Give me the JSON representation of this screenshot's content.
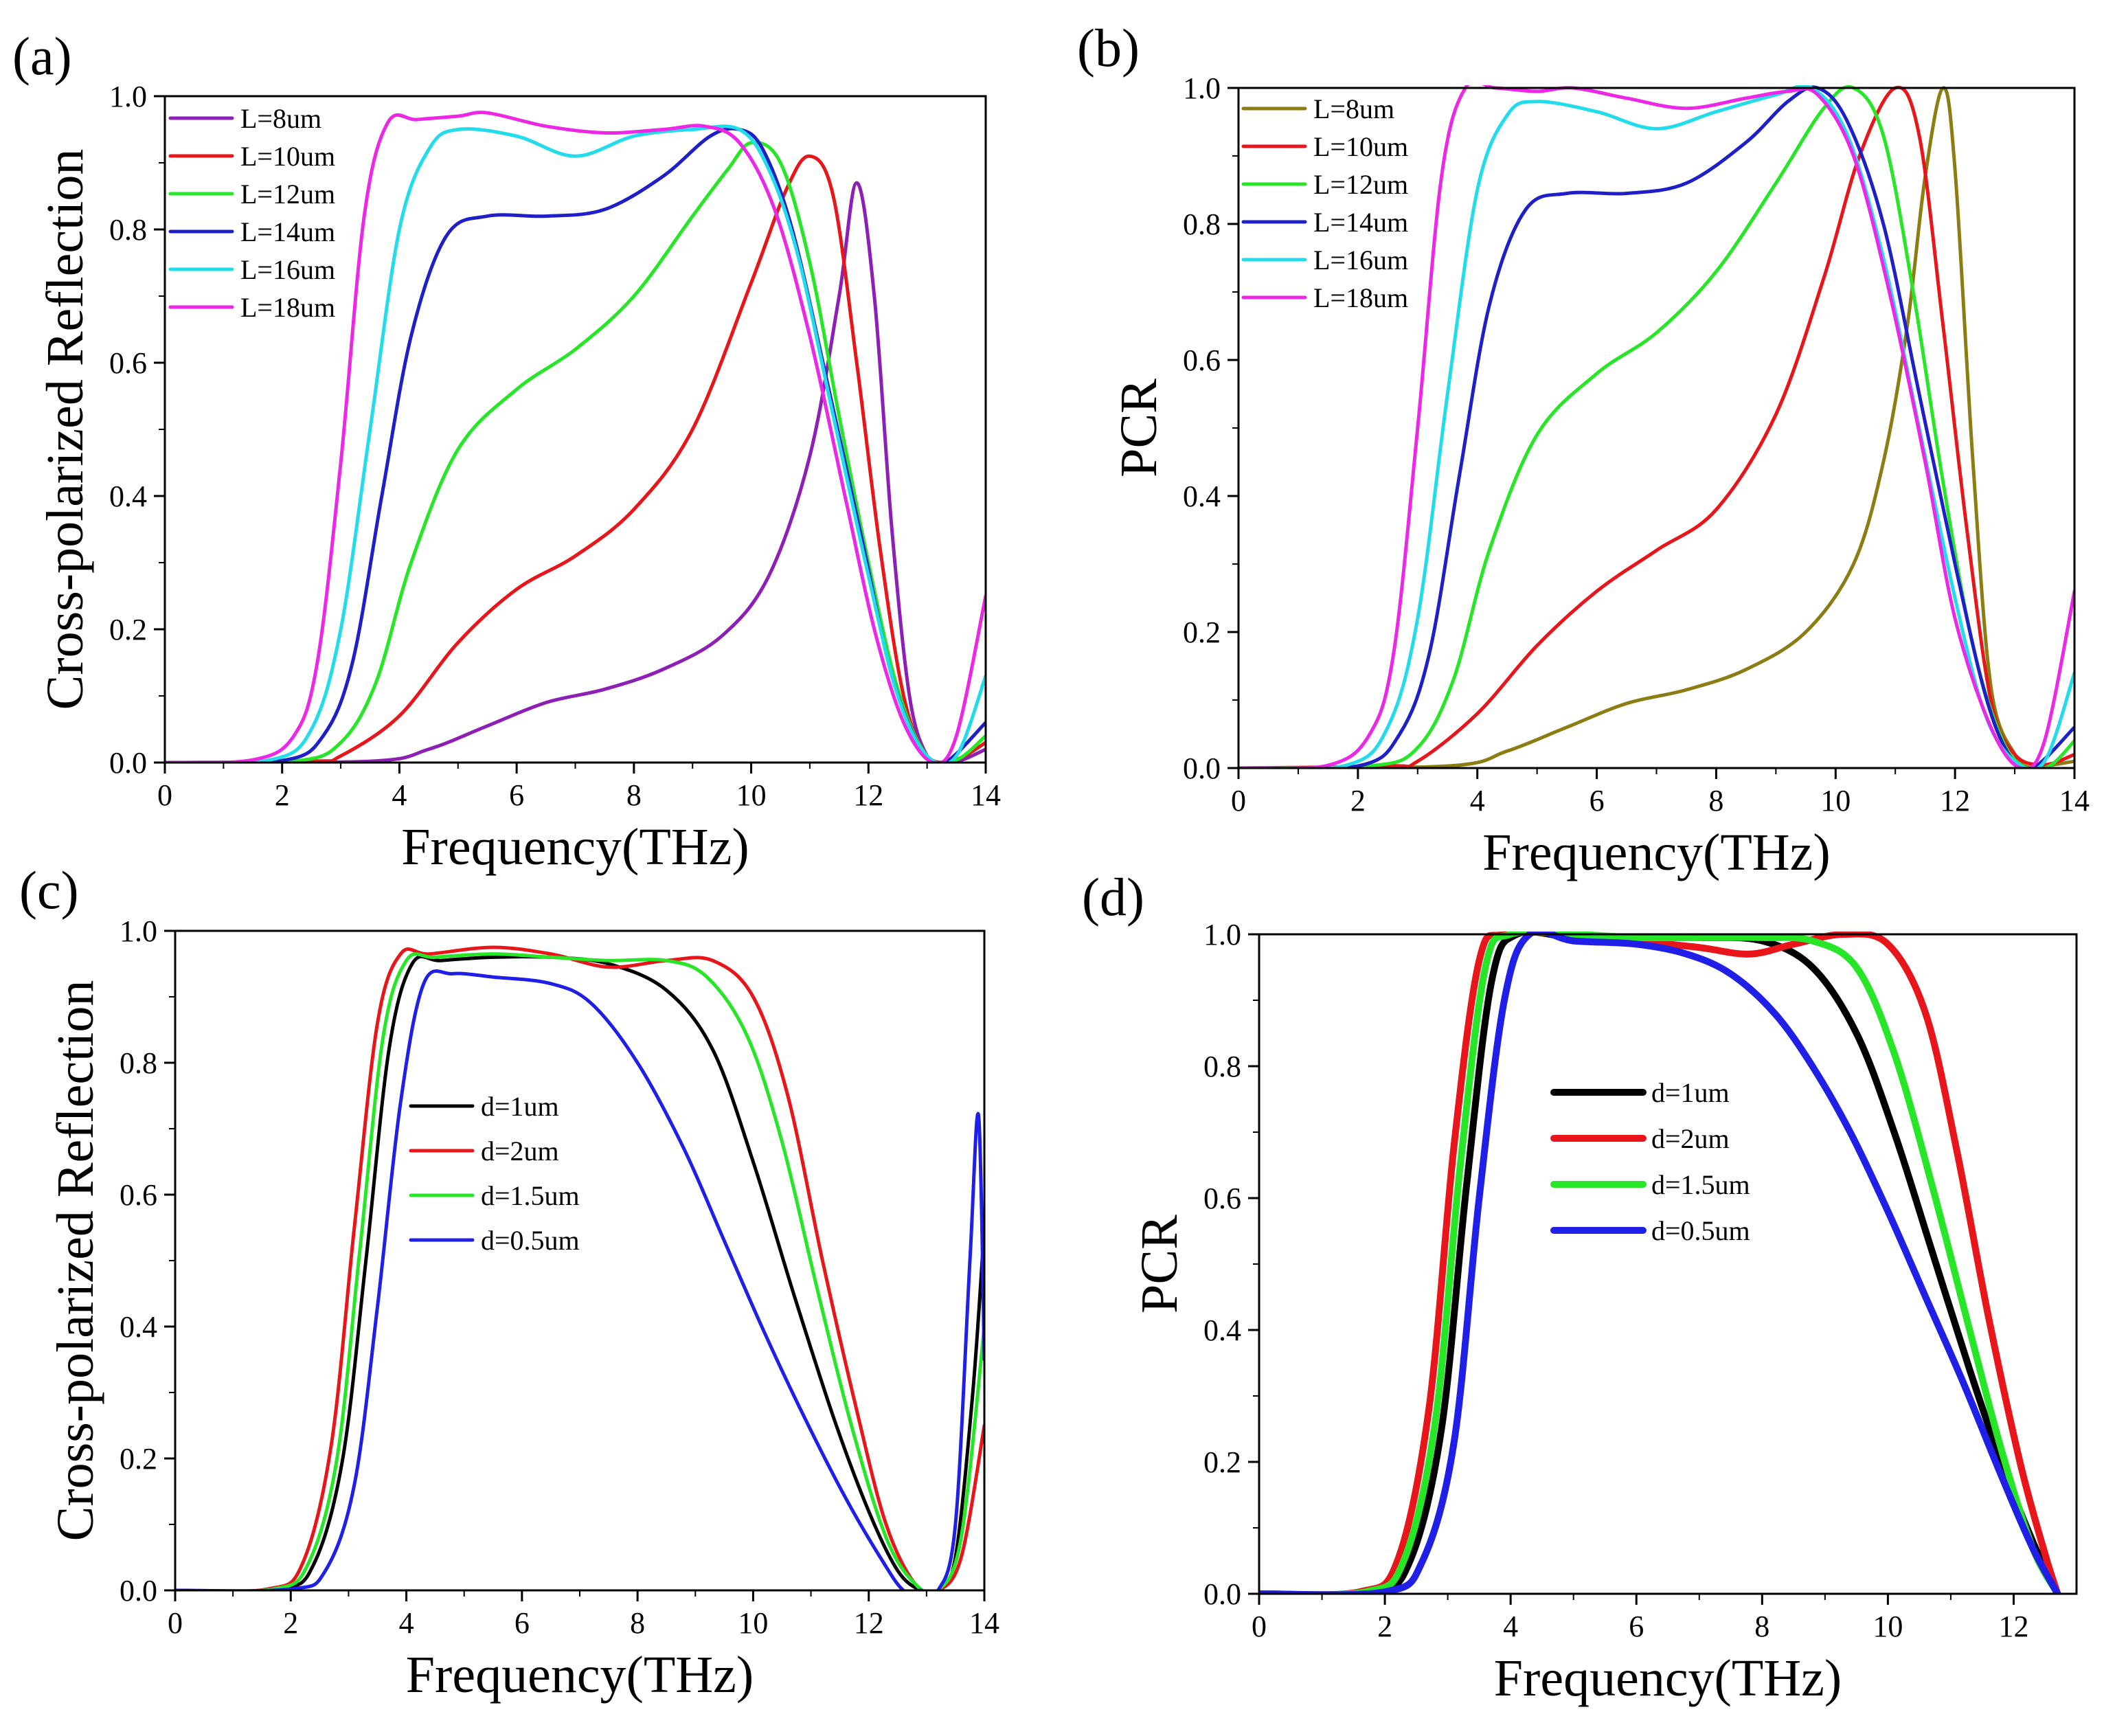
{
  "chart_data": [
    {
      "panel": "(a)",
      "type": "line",
      "xlabel": "Frequency(THz)",
      "ylabel": "Cross-polarized Reflection",
      "xlim": [
        0,
        14
      ],
      "ylim": [
        0,
        1.0
      ],
      "xticks": [
        "0",
        "2",
        "4",
        "6",
        "8",
        "10",
        "12",
        "14"
      ],
      "yticks": [
        "0.0",
        "0.2",
        "0.4",
        "0.6",
        "0.8",
        "1.0"
      ],
      "legend_position": "top-left",
      "series": [
        {
          "name": "L=8um",
          "color": "#8e1fb5",
          "x": [
            0,
            3.5,
            4.5,
            5.5,
            6.5,
            7.5,
            8.5,
            9.5,
            10.3,
            11.0,
            11.5,
            11.8,
            12.1,
            12.4,
            12.7,
            13.0,
            13.3,
            13.6,
            14
          ],
          "y": [
            0,
            0.002,
            0.02,
            0.055,
            0.09,
            0.11,
            0.14,
            0.19,
            0.28,
            0.46,
            0.7,
            0.87,
            0.7,
            0.35,
            0.1,
            0.01,
            0.0,
            0.004,
            0.02
          ]
        },
        {
          "name": "L=10um",
          "color": "#e8161a",
          "x": [
            0,
            2.5,
            3.0,
            4.0,
            5.0,
            6.0,
            7.0,
            8.0,
            9.0,
            10.0,
            10.6,
            11.0,
            11.4,
            11.8,
            12.2,
            12.6,
            13.0,
            13.5,
            14
          ],
          "y": [
            0,
            0.002,
            0.01,
            0.07,
            0.18,
            0.26,
            0.31,
            0.38,
            0.5,
            0.72,
            0.86,
            0.91,
            0.85,
            0.6,
            0.32,
            0.1,
            0.01,
            0.005,
            0.03
          ]
        },
        {
          "name": "L=12um",
          "color": "#27e627",
          "x": [
            0,
            2.2,
            3.0,
            3.6,
            4.2,
            5.0,
            6.0,
            7.0,
            8.0,
            9.0,
            9.6,
            10.0,
            10.5,
            11.0,
            11.5,
            12.0,
            12.5,
            13.0,
            13.5,
            14
          ],
          "y": [
            0,
            0.002,
            0.03,
            0.12,
            0.3,
            0.47,
            0.56,
            0.62,
            0.7,
            0.82,
            0.89,
            0.93,
            0.9,
            0.75,
            0.52,
            0.3,
            0.11,
            0.01,
            0.004,
            0.04
          ]
        },
        {
          "name": "L=14um",
          "color": "#1f1fc8",
          "x": [
            0,
            2.0,
            2.7,
            3.2,
            3.7,
            4.2,
            4.8,
            5.5,
            6.5,
            7.5,
            8.5,
            9.3,
            9.8,
            10.2,
            10.7,
            11.3,
            11.9,
            12.4,
            12.9,
            13.3,
            14
          ],
          "y": [
            0,
            0.003,
            0.04,
            0.15,
            0.4,
            0.64,
            0.79,
            0.82,
            0.82,
            0.83,
            0.88,
            0.94,
            0.95,
            0.92,
            0.8,
            0.57,
            0.33,
            0.13,
            0.02,
            0.0,
            0.06
          ]
        },
        {
          "name": "L=16um",
          "color": "#22dcec",
          "x": [
            0,
            1.8,
            2.5,
            3.0,
            3.5,
            4.0,
            4.5,
            5.0,
            6.0,
            7.0,
            8.0,
            9.0,
            9.8,
            10.3,
            10.8,
            11.4,
            12.0,
            12.5,
            13.0,
            13.5,
            14
          ],
          "y": [
            0,
            0.004,
            0.05,
            0.2,
            0.5,
            0.8,
            0.92,
            0.95,
            0.94,
            0.91,
            0.94,
            0.95,
            0.95,
            0.89,
            0.76,
            0.52,
            0.28,
            0.1,
            0.01,
            0.01,
            0.13
          ]
        },
        {
          "name": "L=18um",
          "color": "#ec28e6",
          "x": [
            0,
            1.5,
            2.2,
            2.6,
            3.0,
            3.4,
            3.8,
            4.3,
            5.0,
            5.5,
            6.5,
            7.5,
            8.5,
            9.2,
            9.8,
            10.4,
            11.0,
            11.6,
            12.1,
            12.6,
            13.1,
            13.5,
            14
          ],
          "y": [
            0,
            0.004,
            0.04,
            0.15,
            0.45,
            0.82,
            0.96,
            0.965,
            0.97,
            0.975,
            0.955,
            0.945,
            0.95,
            0.955,
            0.93,
            0.83,
            0.64,
            0.4,
            0.2,
            0.06,
            0.0,
            0.04,
            0.25
          ]
        }
      ]
    },
    {
      "panel": "(b)",
      "type": "line",
      "xlabel": "Frequency(THz)",
      "ylabel": "PCR",
      "xlim": [
        0,
        14
      ],
      "ylim": [
        0,
        1.0
      ],
      "xticks": [
        "0",
        "2",
        "4",
        "6",
        "8",
        "10",
        "12",
        "14"
      ],
      "yticks": [
        "0.0",
        "0.2",
        "0.4",
        "0.6",
        "0.8",
        "1.0"
      ],
      "legend_position": "top-left",
      "series": [
        {
          "name": "L=8um",
          "color": "#8b7d12",
          "x": [
            0,
            3.5,
            4.5,
            5.5,
            6.5,
            7.5,
            8.5,
            9.5,
            10.3,
            10.8,
            11.2,
            11.5,
            11.8,
            12.0,
            12.3,
            12.6,
            13.0,
            13.3,
            13.6,
            14
          ],
          "y": [
            0,
            0.003,
            0.025,
            0.06,
            0.095,
            0.115,
            0.145,
            0.2,
            0.3,
            0.45,
            0.65,
            0.87,
            1.0,
            0.88,
            0.45,
            0.12,
            0.02,
            0.0,
            0.004,
            0.01
          ]
        },
        {
          "name": "L=10um",
          "color": "#e8161a",
          "x": [
            0,
            2.5,
            3.0,
            4.0,
            5.0,
            6.0,
            7.0,
            8.0,
            9.0,
            9.8,
            10.4,
            11.0,
            11.4,
            11.8,
            12.2,
            12.6,
            13.0,
            13.5,
            14
          ],
          "y": [
            0,
            0.003,
            0.01,
            0.08,
            0.18,
            0.26,
            0.32,
            0.38,
            0.52,
            0.72,
            0.9,
            1.0,
            0.93,
            0.65,
            0.35,
            0.1,
            0.02,
            0.005,
            0.02
          ]
        },
        {
          "name": "L=12um",
          "color": "#27e627",
          "x": [
            0,
            2.2,
            3.0,
            3.6,
            4.2,
            5.0,
            6.0,
            7.0,
            8.0,
            9.0,
            9.8,
            10.3,
            10.8,
            11.3,
            11.8,
            12.3,
            12.8,
            13.2,
            13.6,
            14
          ],
          "y": [
            0,
            0.003,
            0.03,
            0.13,
            0.32,
            0.49,
            0.58,
            0.64,
            0.73,
            0.86,
            0.97,
            1.0,
            0.93,
            0.7,
            0.42,
            0.18,
            0.04,
            0.0,
            0.004,
            0.04
          ]
        },
        {
          "name": "L=14um",
          "color": "#1f1fc8",
          "x": [
            0,
            2.0,
            2.7,
            3.2,
            3.7,
            4.2,
            4.8,
            5.5,
            6.5,
            7.5,
            8.5,
            9.2,
            9.7,
            10.2,
            10.8,
            11.4,
            12.0,
            12.5,
            12.9,
            13.3,
            14
          ],
          "y": [
            0,
            0.003,
            0.05,
            0.17,
            0.43,
            0.68,
            0.82,
            0.845,
            0.845,
            0.86,
            0.92,
            0.98,
            1.0,
            0.95,
            0.8,
            0.55,
            0.3,
            0.11,
            0.02,
            0.0,
            0.06
          ]
        },
        {
          "name": "L=16um",
          "color": "#22dcec",
          "x": [
            0,
            1.8,
            2.5,
            3.0,
            3.5,
            4.0,
            4.5,
            5.0,
            6.0,
            7.0,
            8.0,
            9.0,
            9.6,
            10.2,
            10.8,
            11.4,
            12.0,
            12.5,
            13.0,
            13.5,
            14
          ],
          "y": [
            0,
            0.004,
            0.06,
            0.22,
            0.55,
            0.85,
            0.96,
            0.98,
            0.965,
            0.94,
            0.965,
            0.99,
            1.0,
            0.93,
            0.75,
            0.5,
            0.25,
            0.08,
            0.01,
            0.01,
            0.14
          ]
        },
        {
          "name": "L=18um",
          "color": "#ec28e6",
          "x": [
            0,
            1.5,
            2.2,
            2.6,
            3.0,
            3.4,
            3.8,
            4.3,
            5.0,
            5.6,
            6.5,
            7.5,
            8.5,
            9.2,
            9.7,
            10.3,
            10.9,
            11.5,
            12.0,
            12.6,
            13.1,
            13.5,
            14
          ],
          "y": [
            0,
            0.004,
            0.05,
            0.17,
            0.5,
            0.87,
            1.0,
            1.0,
            0.995,
            1.0,
            0.985,
            0.97,
            0.985,
            0.995,
            0.99,
            0.9,
            0.7,
            0.45,
            0.22,
            0.06,
            0.0,
            0.04,
            0.26
          ]
        }
      ]
    },
    {
      "panel": "(c)",
      "type": "line",
      "xlabel": "Frequency(THz)",
      "ylabel": "Cross-polarized Reflection",
      "xlim": [
        0,
        14
      ],
      "ylim": [
        0,
        1.0
      ],
      "xticks": [
        "0",
        "2",
        "4",
        "6",
        "8",
        "10",
        "12",
        "14"
      ],
      "yticks": [
        "0.0",
        "0.2",
        "0.4",
        "0.6",
        "0.8",
        "1.0"
      ],
      "legend_position": "center-left",
      "series": [
        {
          "name": "d=1um",
          "color": "#000000",
          "x": [
            0,
            1.8,
            2.4,
            2.9,
            3.3,
            3.7,
            4.1,
            4.6,
            5.5,
            6.5,
            7.5,
            8.5,
            9.3,
            10.0,
            10.7,
            11.4,
            12.0,
            12.5,
            12.9,
            13.2,
            13.5,
            13.8,
            14
          ],
          "y": [
            0,
            0.002,
            0.04,
            0.2,
            0.5,
            0.82,
            0.95,
            0.955,
            0.96,
            0.96,
            0.95,
            0.91,
            0.82,
            0.65,
            0.45,
            0.26,
            0.12,
            0.03,
            0.0,
            0.0,
            0.05,
            0.3,
            0.55
          ]
        },
        {
          "name": "d=2um",
          "color": "#e8161a",
          "x": [
            0,
            1.6,
            2.2,
            2.7,
            3.1,
            3.5,
            3.9,
            4.4,
            5.5,
            6.5,
            7.5,
            8.5,
            9.3,
            10.0,
            10.6,
            11.2,
            11.8,
            12.3,
            12.8,
            13.2,
            13.6,
            14
          ],
          "y": [
            0,
            0.002,
            0.04,
            0.22,
            0.55,
            0.86,
            0.965,
            0.965,
            0.975,
            0.965,
            0.945,
            0.955,
            0.955,
            0.9,
            0.75,
            0.5,
            0.27,
            0.1,
            0.01,
            0.0,
            0.05,
            0.25
          ]
        },
        {
          "name": "d=1.5um",
          "color": "#27e627",
          "x": [
            0,
            1.7,
            2.3,
            2.8,
            3.2,
            3.6,
            4.0,
            4.5,
            5.5,
            6.5,
            7.5,
            8.5,
            9.2,
            9.9,
            10.5,
            11.1,
            11.7,
            12.3,
            12.8,
            13.2,
            13.6,
            14
          ],
          "y": [
            0,
            0.002,
            0.04,
            0.2,
            0.52,
            0.84,
            0.955,
            0.96,
            0.965,
            0.96,
            0.955,
            0.955,
            0.93,
            0.84,
            0.68,
            0.46,
            0.25,
            0.08,
            0.01,
            0.0,
            0.08,
            0.4
          ]
        },
        {
          "name": "d=0.5um",
          "color": "#1f1fe8",
          "x": [
            0,
            2.0,
            2.6,
            3.1,
            3.5,
            3.9,
            4.3,
            4.8,
            5.5,
            6.5,
            7.2,
            8.0,
            8.8,
            9.5,
            10.2,
            10.9,
            11.6,
            12.2,
            12.6,
            12.9,
            13.2,
            13.5,
            13.75,
            13.9,
            14
          ],
          "y": [
            0,
            0.002,
            0.03,
            0.16,
            0.43,
            0.74,
            0.92,
            0.935,
            0.93,
            0.92,
            0.89,
            0.8,
            0.67,
            0.53,
            0.39,
            0.26,
            0.14,
            0.05,
            0.0,
            0.0,
            0.0,
            0.1,
            0.5,
            0.72,
            0.35
          ]
        }
      ]
    },
    {
      "panel": "(d)",
      "type": "line",
      "xlabel": "Frequency(THz)",
      "ylabel": "PCR",
      "xlim": [
        0,
        13
      ],
      "ylim": [
        0,
        1.0
      ],
      "xticks": [
        "0",
        "2",
        "4",
        "6",
        "8",
        "10",
        "12"
      ],
      "yticks": [
        "0.0",
        "0.2",
        "0.4",
        "0.6",
        "0.8",
        "1.0"
      ],
      "legend_position": "center-left",
      "series": [
        {
          "name": "d=1um",
          "color": "#000000",
          "x": [
            0,
            1.8,
            2.4,
            2.9,
            3.3,
            3.7,
            4.1,
            5.0,
            6.0,
            7.0,
            8.0,
            8.8,
            9.5,
            10.1,
            10.7,
            11.3,
            11.8,
            12.3,
            12.7
          ],
          "y": [
            0,
            0.003,
            0.05,
            0.25,
            0.62,
            0.93,
            1.0,
            0.995,
            0.995,
            0.995,
            0.99,
            0.95,
            0.85,
            0.7,
            0.52,
            0.34,
            0.2,
            0.08,
            0.0
          ]
        },
        {
          "name": "d=2um",
          "color": "#e8161a",
          "x": [
            0,
            1.6,
            2.2,
            2.7,
            3.1,
            3.5,
            3.9,
            5.0,
            6.0,
            7.0,
            7.8,
            8.5,
            9.3,
            10.0,
            10.6,
            11.1,
            11.6,
            12.1,
            12.5,
            12.7
          ],
          "y": [
            0,
            0.003,
            0.05,
            0.28,
            0.68,
            0.96,
            1.0,
            1.0,
            0.99,
            0.98,
            0.97,
            0.985,
            1.0,
            0.985,
            0.88,
            0.67,
            0.42,
            0.2,
            0.06,
            0.0
          ]
        },
        {
          "name": "d=1.5um",
          "color": "#27e627",
          "x": [
            0,
            1.7,
            2.3,
            2.8,
            3.2,
            3.6,
            4.0,
            5.0,
            6.0,
            7.0,
            8.0,
            8.8,
            9.5,
            10.1,
            10.7,
            11.3,
            11.8,
            12.3,
            12.7
          ],
          "y": [
            0,
            0.003,
            0.05,
            0.26,
            0.65,
            0.95,
            1.0,
            1.0,
            0.995,
            0.995,
            0.995,
            0.99,
            0.95,
            0.82,
            0.62,
            0.4,
            0.22,
            0.07,
            0.0
          ]
        },
        {
          "name": "d=0.5um",
          "color": "#1f1fe8",
          "x": [
            0,
            2.0,
            2.6,
            3.1,
            3.5,
            3.9,
            4.3,
            5.0,
            6.0,
            6.8,
            7.5,
            8.2,
            8.8,
            9.4,
            10.0,
            10.6,
            11.2,
            11.8,
            12.3,
            12.7
          ],
          "y": [
            0,
            0.003,
            0.05,
            0.23,
            0.6,
            0.9,
            1.0,
            0.99,
            0.985,
            0.97,
            0.94,
            0.88,
            0.8,
            0.7,
            0.58,
            0.45,
            0.32,
            0.18,
            0.07,
            0.0
          ]
        }
      ]
    }
  ]
}
